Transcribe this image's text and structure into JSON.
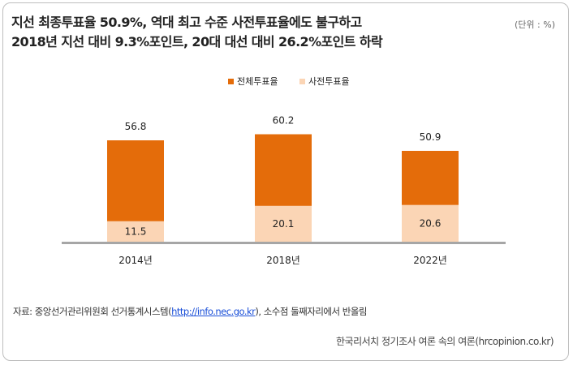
{
  "title": {
    "line1": "지선 최종투표율 50.9%, 역대 최고 수준 사전투표율에도 불구하고",
    "line2": "2018년 지선 대비 9.3%포인트, 20대 대선 대비 26.2%포인트 하락"
  },
  "unit_label": "(단위 : %)",
  "source": {
    "prefix": "자료: 중앙선거관리위원회 선거통계시스템(",
    "link": "http://info.nec.go.kr",
    "suffix": "), 소수점 둘째자리에서 반올림"
  },
  "credit": "한국리서치 정기조사 여론 속의 여론(hrcopinion.co.kr)",
  "colors": {
    "total": "#e46c0a",
    "early": "#fbd5b5",
    "baseline": "#a6a6a6"
  },
  "chart_data": {
    "type": "bar",
    "title": "",
    "categories": [
      "2014년",
      "2018년",
      "2022년"
    ],
    "series": [
      {
        "name": "전체투표율",
        "values": [
          56.8,
          60.2,
          50.9
        ]
      },
      {
        "name": "사전투표율",
        "values": [
          11.5,
          20.1,
          20.6
        ]
      }
    ],
    "xlabel": "",
    "ylabel": "",
    "ylim": [
      0,
      65
    ],
    "grid": false,
    "legend": "top-center",
    "overlap": true
  }
}
